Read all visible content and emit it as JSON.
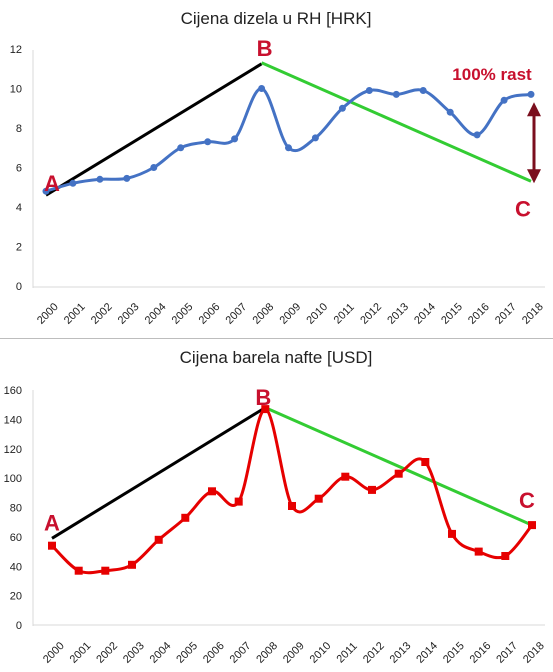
{
  "chart_data": [
    {
      "type": "line",
      "title": "Cijena dizela u RH [HRK]",
      "xlabel": "",
      "ylabel": "",
      "categories": [
        "2000",
        "2001",
        "2002",
        "2003",
        "2004",
        "2005",
        "2006",
        "2007",
        "2008",
        "2009",
        "2010",
        "2011",
        "2012",
        "2013",
        "2014",
        "2015",
        "2016",
        "2017",
        "2018"
      ],
      "series": [
        {
          "values": [
            4.8,
            5.2,
            5.4,
            5.45,
            6.0,
            7.0,
            7.3,
            7.45,
            10.0,
            7.0,
            7.5,
            9.0,
            9.9,
            9.7,
            9.9,
            8.8,
            7.65,
            9.4,
            9.7
          ],
          "color": "#4472c4",
          "marker": "circle"
        }
      ],
      "ylim": [
        0,
        12
      ],
      "yticks": [
        0,
        2,
        4,
        6,
        8,
        10,
        12
      ],
      "grid": false,
      "legend": "none",
      "annotations": [
        {
          "label": "A",
          "x": "2000",
          "y": 4.6
        },
        {
          "label": "B",
          "x": "2008",
          "y": 11.3
        },
        {
          "label": "C",
          "x": "2018",
          "y": 5.3
        },
        {
          "label": "100% rast"
        }
      ],
      "trend_lines": [
        {
          "color": "#000000",
          "from": {
            "x": "2000",
            "y": 4.6
          },
          "to": {
            "x": "2008",
            "y": 11.25
          }
        },
        {
          "color": "#33cc33",
          "from": {
            "x": "2008",
            "y": 11.3
          },
          "to": {
            "x": "2018",
            "y": 5.3
          }
        }
      ],
      "arrow": {
        "color": "#7b0f1e",
        "x": "2018",
        "from_y": 9.1,
        "to_y": 5.4
      }
    },
    {
      "type": "line",
      "title": "Cijena barela nafte [USD]",
      "xlabel": "",
      "ylabel": "",
      "categories": [
        "2000",
        "2001",
        "2002",
        "2003",
        "2004",
        "2005",
        "2006",
        "2007",
        "2008",
        "2009",
        "2010",
        "2011",
        "2012",
        "2013",
        "2014",
        "2015",
        "2016",
        "2017",
        "2018"
      ],
      "series": [
        {
          "values": [
            54,
            37,
            37,
            41,
            58,
            73,
            91,
            84,
            147,
            81,
            86,
            101,
            92,
            103,
            111,
            62,
            50,
            47,
            68
          ],
          "color": "#e60000",
          "marker": "square"
        }
      ],
      "ylim": [
        0,
        160
      ],
      "yticks": [
        0,
        20,
        40,
        60,
        80,
        100,
        120,
        140,
        160
      ],
      "grid": false,
      "legend": "none",
      "annotations": [
        {
          "label": "A",
          "x": "2000",
          "y": 59
        },
        {
          "label": "B",
          "x": "2008",
          "y": 147
        },
        {
          "label": "C",
          "x": "2018",
          "y": 68
        }
      ],
      "trend_lines": [
        {
          "color": "#000000",
          "from": {
            "x": "2000",
            "y": 59
          },
          "to": {
            "x": "2008",
            "y": 148
          }
        },
        {
          "color": "#33cc33",
          "from": {
            "x": "2008",
            "y": 148
          },
          "to": {
            "x": "2018",
            "y": 68
          }
        }
      ]
    }
  ]
}
